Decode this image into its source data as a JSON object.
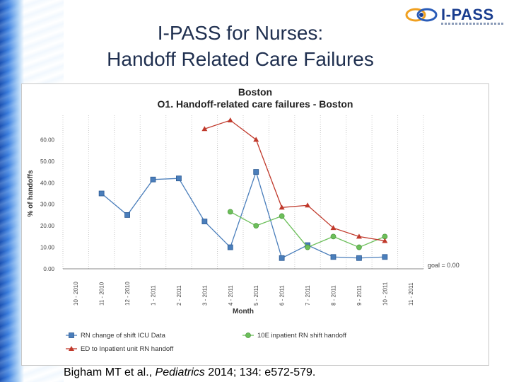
{
  "slide": {
    "title_line1": "I-PASS for Nurses:",
    "title_line2": "Handoff Related Care Failures",
    "logo_text": "I-PASS",
    "citation_authors": "Bigham MT et al., ",
    "citation_journal": "Pediatrics",
    "citation_rest": " 2014; 134: e572-579."
  },
  "colors": {
    "series_icu": "#4a7ebb",
    "series_10e": "#6cbf5a",
    "series_ed": "#c0392b",
    "title_text": "#1f2f4f",
    "logo": "#1a3d8f"
  },
  "chart_data": {
    "type": "line",
    "title": "Boston",
    "subtitle": "O1. Handoff-related care failures - Boston",
    "xlabel": "Month",
    "ylabel": "% of handoffs",
    "ylim": [
      0,
      70
    ],
    "yticks": [
      "0.00",
      "10.00",
      "20.00",
      "30.00",
      "40.00",
      "50.00",
      "60.00"
    ],
    "grid": "vertical dotted",
    "categories": [
      "10 - 2010",
      "11 - 2010",
      "12 - 2010",
      "1 - 2011",
      "2 - 2011",
      "3 - 2011",
      "4 - 2011",
      "5 - 2011",
      "6 - 2011",
      "7 - 2011",
      "8 - 2011",
      "9 - 2011",
      "10 - 2011",
      "11 - 2011"
    ],
    "goal": {
      "label": "goal = 0.00",
      "value": 0
    },
    "legend_position": "bottom",
    "series": [
      {
        "name": "RN change of shift ICU Data",
        "color": "#4a7ebb",
        "marker": "square",
        "values": [
          null,
          35,
          25,
          41.5,
          42,
          22,
          10,
          45,
          5,
          11,
          5.5,
          5,
          5.5,
          null
        ]
      },
      {
        "name": "10E inpatient RN shift handoff",
        "color": "#6cbf5a",
        "marker": "circle",
        "values": [
          null,
          null,
          null,
          null,
          null,
          null,
          26.5,
          20,
          24.5,
          10,
          15,
          10,
          15,
          null
        ]
      },
      {
        "name": "ED to Inpatient unit RN handoff",
        "color": "#c0392b",
        "marker": "triangle",
        "values": [
          null,
          null,
          null,
          null,
          null,
          65,
          69,
          60,
          28.5,
          29.5,
          19,
          15,
          13,
          null
        ]
      }
    ]
  }
}
